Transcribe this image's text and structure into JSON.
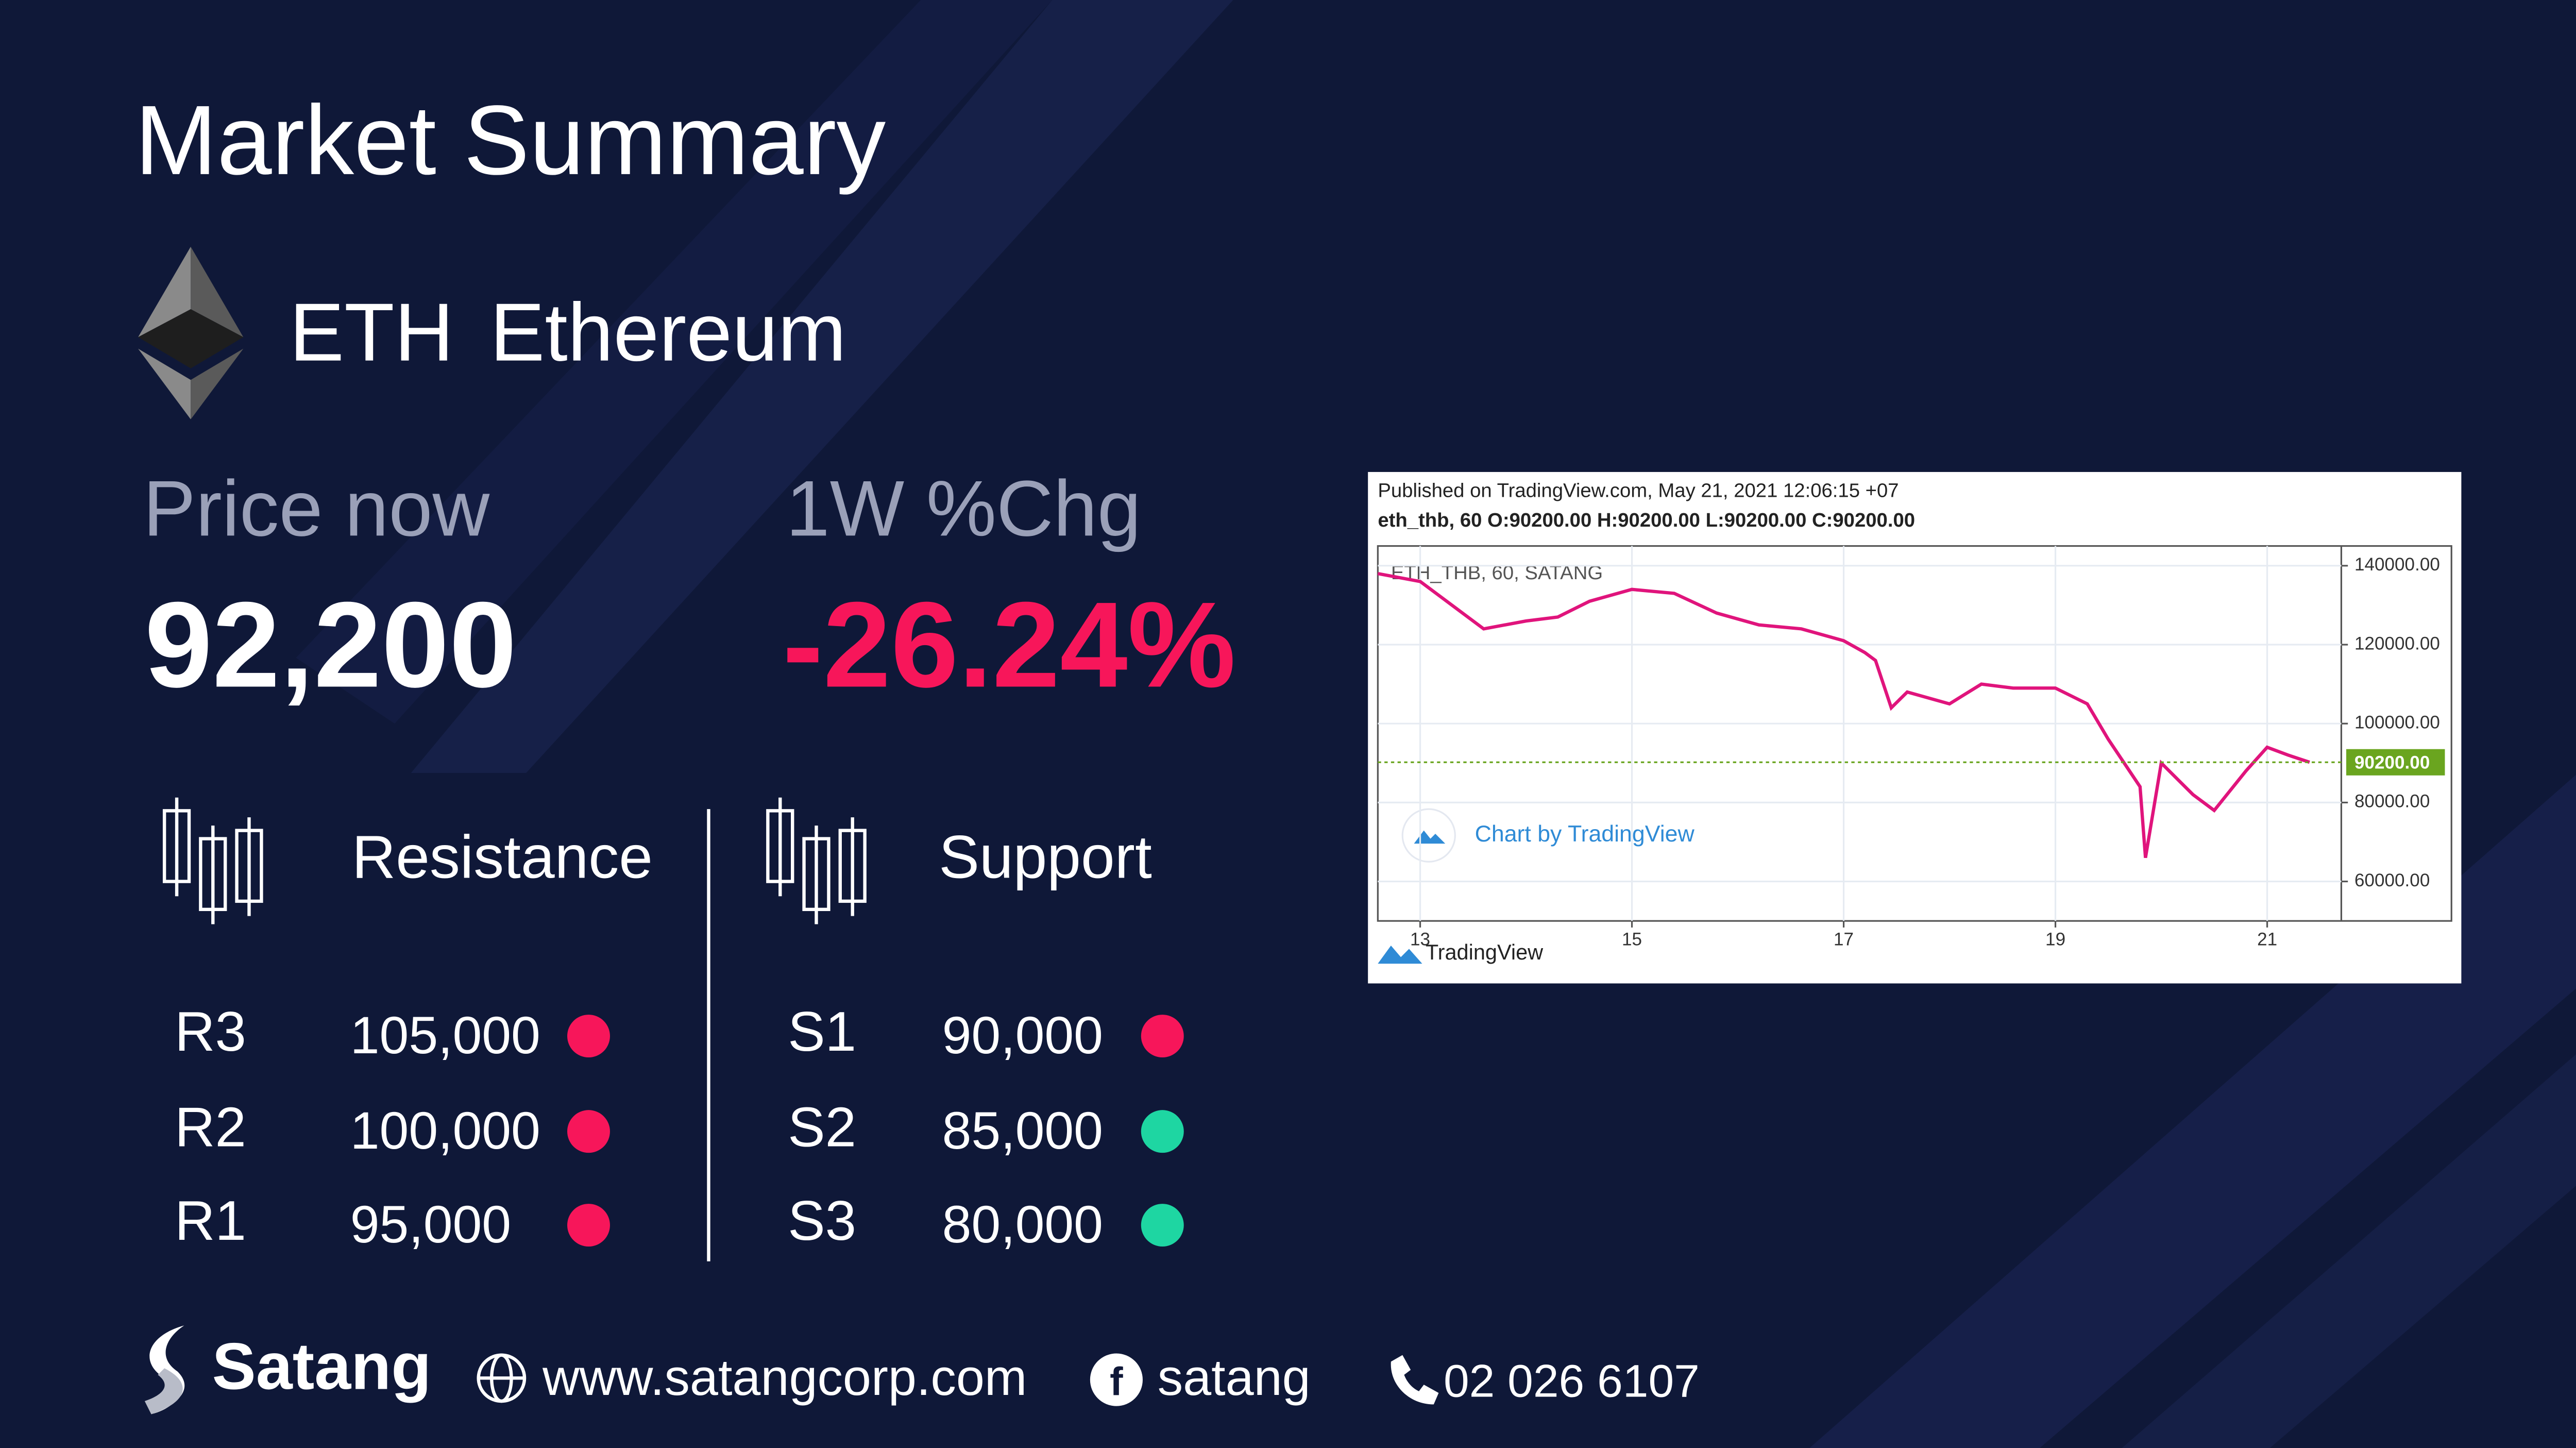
{
  "header": {
    "title": "Market Summary"
  },
  "asset": {
    "symbol": "ETH",
    "name": "Ethereum"
  },
  "price": {
    "label": "Price now",
    "value": "92,200"
  },
  "change": {
    "label": "1W %Chg",
    "value": "-26.24%"
  },
  "resistance": {
    "label": "Resistance",
    "levels": [
      {
        "name": "R3",
        "value": "105,000",
        "color": "#f7165a"
      },
      {
        "name": "R2",
        "value": "100,000",
        "color": "#f7165a"
      },
      {
        "name": "R1",
        "value": "95,000",
        "color": "#f7165a"
      }
    ]
  },
  "support": {
    "label": "Support",
    "levels": [
      {
        "name": "S1",
        "value": "90,000",
        "color": "#f7165a"
      },
      {
        "name": "S2",
        "value": "85,000",
        "color": "#1ed6a2"
      },
      {
        "name": "S3",
        "value": "80,000",
        "color": "#1ed6a2"
      }
    ]
  },
  "chart_data": {
    "type": "line",
    "title": "Published on TradingView.com, May 21, 2021 12:06:15 +07",
    "subtitle": "eth_thb, 60 O:90200.00 H:90200.00 L:90200.00 C:90200.00",
    "symbol_label": "ETH_THB, 60, SATANG",
    "watermark": "Chart by TradingView",
    "brand": "TradingView",
    "color": "#e0147c",
    "x": [
      12.6,
      13.0,
      13.3,
      13.6,
      14.0,
      14.3,
      14.6,
      15.0,
      15.4,
      15.8,
      16.2,
      16.6,
      17.0,
      17.2,
      17.3,
      17.45,
      17.6,
      18.0,
      18.3,
      18.6,
      19.0,
      19.3,
      19.5,
      19.8,
      19.85,
      20.0,
      20.3,
      20.5,
      20.8,
      21.0,
      21.2,
      21.4
    ],
    "values": [
      138000,
      136000,
      130000,
      124000,
      126000,
      127000,
      131000,
      134000,
      133000,
      128000,
      125000,
      124000,
      121000,
      118000,
      116000,
      104000,
      108000,
      105000,
      110000,
      109000,
      109000,
      105000,
      96000,
      84000,
      66000,
      90000,
      82000,
      78000,
      88000,
      94000,
      92000,
      90200
    ],
    "last_price": {
      "value": 90200,
      "label": "90200.00"
    },
    "xlim": [
      12.6,
      21.7
    ],
    "ylim": [
      50000,
      145000
    ],
    "xticks": [
      13,
      15,
      17,
      19,
      21
    ],
    "yticks": [
      {
        "value": 60000,
        "label": "60000.00"
      },
      {
        "value": 80000,
        "label": "80000.00"
      },
      {
        "value": 100000,
        "label": "100000.00"
      },
      {
        "value": 120000,
        "label": "120000.00"
      },
      {
        "value": 140000,
        "label": "140000.00"
      }
    ],
    "grid": true
  },
  "footer": {
    "brand": "Satang",
    "website": "www.satangcorp.com",
    "facebook": "satang",
    "phone": "02 026 6107"
  }
}
